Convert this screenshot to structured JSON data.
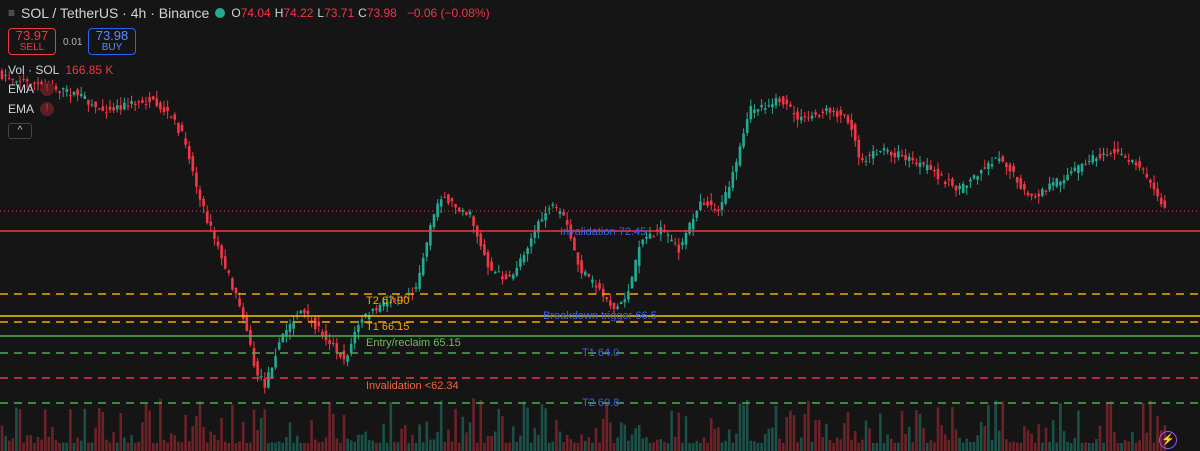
{
  "header": {
    "symbol": "SOL / TetherUS · 4h · Binance",
    "ohlc": [
      {
        "key": "O",
        "value": "74.04"
      },
      {
        "key": "H",
        "value": "74.22"
      },
      {
        "key": "L",
        "value": "73.71"
      },
      {
        "key": "C",
        "value": "73.98"
      }
    ],
    "change": "−0.06 (−0.08%)"
  },
  "trade": {
    "sell_price": "73.97",
    "sell_label": "SELL",
    "spread": "0.01",
    "buy_price": "73.98",
    "buy_label": "BUY"
  },
  "indicators": {
    "volume_label": "Vol · SOL",
    "volume_value": "166.85 K",
    "ema_1": "EMA",
    "ema_2": "EMA"
  },
  "levels": [
    "Invalidation 72.45",
    "T2 67.90",
    "Breakdown trigger 66.5",
    "T1 66.15",
    "Entry/reclaim 65.15",
    "T1 64.0",
    "Invalidation <62.34",
    "T2 60.8"
  ]
}
